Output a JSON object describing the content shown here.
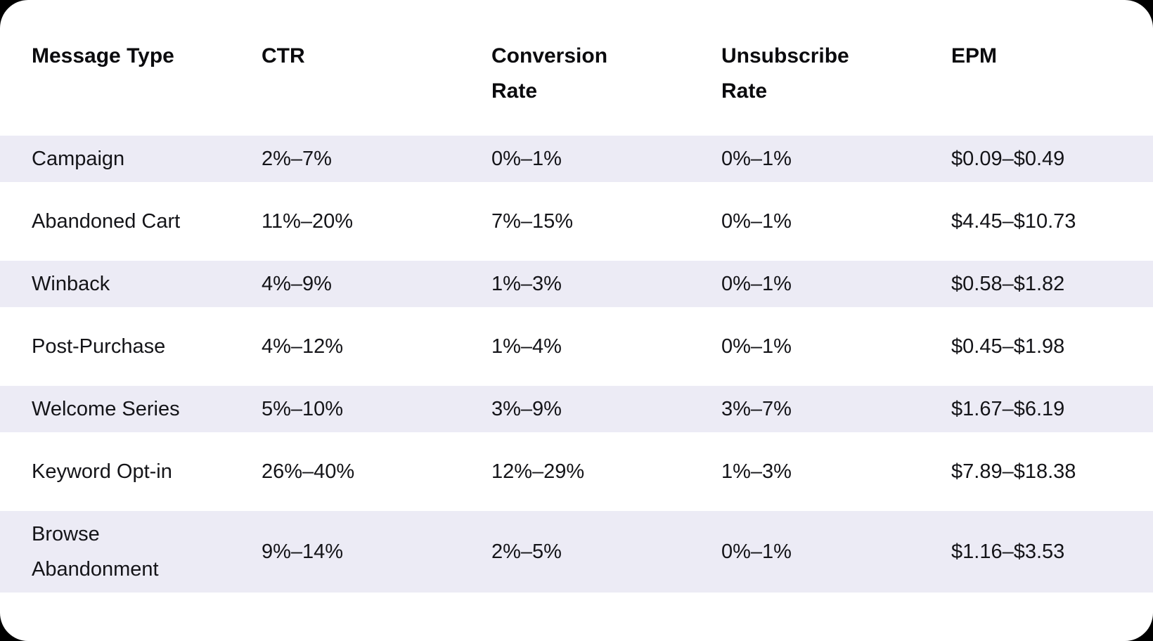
{
  "colors": {
    "page_background": "#000000",
    "card_background": "#FFFFFF",
    "row_stripe": "#ECEBF5",
    "header_text": "#0B0B0E",
    "body_text": "#141418"
  },
  "chart_data": {
    "type": "table",
    "title": "",
    "columns": [
      "Message Type",
      "CTR",
      "Conversion Rate",
      "Unsubscribe Rate",
      "EPM"
    ],
    "rows": [
      [
        "Campaign",
        "2%–7%",
        "0%–1%",
        "0%–1%",
        "$0.09–$0.49"
      ],
      [
        "Abandoned Cart",
        "11%–20%",
        "7%–15%",
        "0%–1%",
        "$4.45–$10.73"
      ],
      [
        "Winback",
        "4%–9%",
        "1%–3%",
        "0%–1%",
        "$0.58–$1.82"
      ],
      [
        "Post-Purchase",
        "4%–12%",
        "1%–4%",
        "0%–1%",
        "$0.45–$1.98"
      ],
      [
        "Welcome Series",
        "5%–10%",
        "3%–9%",
        "3%–7%",
        "$1.67–$6.19"
      ],
      [
        "Keyword Opt-in",
        "26%–40%",
        "12%–29%",
        "1%–3%",
        "$7.89–$18.38"
      ],
      [
        "Browse Abandonment",
        "9%–14%",
        "2%–5%",
        "0%–1%",
        "$1.16–$3.53"
      ]
    ],
    "layout": {
      "striped_rows": "odd rows (1st, 3rd, 5th, 7th) have lavender background",
      "grid": false,
      "legend": false
    }
  }
}
